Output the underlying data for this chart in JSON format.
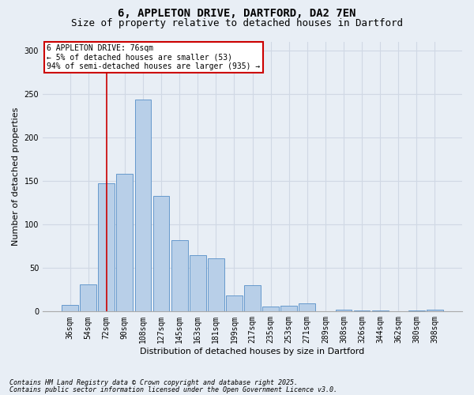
{
  "title_line1": "6, APPLETON DRIVE, DARTFORD, DA2 7EN",
  "title_line2": "Size of property relative to detached houses in Dartford",
  "categories": [
    "36sqm",
    "54sqm",
    "72sqm",
    "90sqm",
    "108sqm",
    "127sqm",
    "145sqm",
    "163sqm",
    "181sqm",
    "199sqm",
    "217sqm",
    "235sqm",
    "253sqm",
    "271sqm",
    "289sqm",
    "308sqm",
    "326sqm",
    "344sqm",
    "362sqm",
    "380sqm",
    "398sqm"
  ],
  "values": [
    8,
    31,
    147,
    158,
    243,
    133,
    82,
    65,
    61,
    18,
    30,
    6,
    7,
    9,
    0,
    2,
    1,
    1,
    0,
    1,
    2
  ],
  "bar_color": "#b8cfe8",
  "bar_edge_color": "#6699cc",
  "bg_color": "#e8eef5",
  "ylabel": "Number of detached properties",
  "xlabel": "Distribution of detached houses by size in Dartford",
  "ylim": [
    0,
    310
  ],
  "yticks": [
    0,
    50,
    100,
    150,
    200,
    250,
    300
  ],
  "vline_x": 2.0,
  "vline_color": "#cc0000",
  "annotation_text": "6 APPLETON DRIVE: 76sqm\n← 5% of detached houses are smaller (53)\n94% of semi-detached houses are larger (935) →",
  "annotation_box_color": "#cc0000",
  "footer_line1": "Contains HM Land Registry data © Crown copyright and database right 2025.",
  "footer_line2": "Contains public sector information licensed under the Open Government Licence v3.0.",
  "grid_color": "#d0d8e4",
  "title_fontsize": 10,
  "subtitle_fontsize": 9,
  "axis_label_fontsize": 8,
  "tick_fontsize": 7,
  "annotation_fontsize": 7,
  "footer_fontsize": 6
}
